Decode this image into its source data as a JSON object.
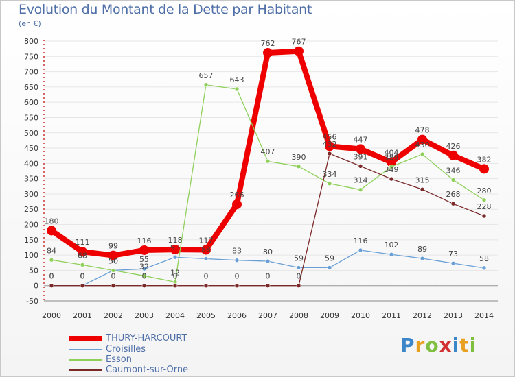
{
  "title": "Evolution du Montant de la Dette par Habitant",
  "unit": "(en €)",
  "logo": {
    "letters": [
      "P",
      "r",
      "o",
      "x",
      "i",
      "t",
      "i"
    ],
    "colors": [
      "#3a86c8",
      "#e8a020",
      "#7fbf3f",
      "#d03030",
      "#3a86c8",
      "#e8a020",
      "#7fbf3f"
    ]
  },
  "chart_data": {
    "type": "line",
    "title": "Evolution du Montant de la Dette par Habitant",
    "ylabel": "(en €)",
    "x": [
      "2000",
      "2001",
      "2002",
      "2003",
      "2004",
      "2005",
      "2006",
      "2007",
      "2008",
      "2009",
      "2010",
      "2011",
      "2012",
      "2013",
      "2014"
    ],
    "yticks": [
      -50,
      0,
      50,
      100,
      150,
      200,
      250,
      300,
      350,
      400,
      450,
      500,
      550,
      600,
      650,
      700,
      750,
      800
    ],
    "ylim": [
      -50,
      800
    ],
    "series": [
      {
        "name": "THURY-HARCOURT",
        "color": "#ee0000",
        "width": 8,
        "marker": 7,
        "values": [
          180,
          111,
          99,
          116,
          118,
          117,
          266,
          762,
          767,
          456,
          447,
          404,
          478,
          426,
          382
        ],
        "labels": [
          "180",
          "111",
          "99",
          "116",
          "118",
          "117",
          "266",
          "762",
          "767",
          "456",
          "447",
          "404",
          "478",
          "426",
          "382"
        ]
      },
      {
        "name": "Croisilles",
        "color": "#6a9fd6",
        "width": 1.3,
        "marker": 3,
        "values": [
          0,
          0,
          50,
          55,
          93,
          88,
          83,
          80,
          59,
          59,
          116,
          102,
          89,
          73,
          58
        ],
        "labels": [
          "0",
          "0",
          "50",
          "55",
          "93",
          "88",
          "83",
          "80",
          "59",
          "59",
          "116",
          "102",
          "89",
          "73",
          "58"
        ]
      },
      {
        "name": "Esson",
        "color": "#8ed05a",
        "width": 1.3,
        "marker": 3,
        "values": [
          84,
          68,
          50,
          32,
          12,
          657,
          643,
          407,
          390,
          334,
          314,
          389,
          430,
          346,
          280
        ],
        "labels": [
          "84",
          "68",
          "50",
          "32",
          "12",
          "657",
          "643",
          "407",
          "390",
          "334",
          "314",
          "389",
          "430",
          "346",
          "280"
        ]
      },
      {
        "name": "Caumont-sur-Orne",
        "color": "#7a2828",
        "width": 1.3,
        "marker": 3,
        "values": [
          0,
          0,
          0,
          0,
          0,
          0,
          0,
          0,
          0,
          432,
          391,
          349,
          315,
          268,
          228
        ],
        "labels": [
          "0",
          "0",
          "0",
          "0",
          "0",
          "0",
          "0",
          "0",
          "0",
          "432",
          "391",
          "349",
          "315",
          "268",
          "228"
        ]
      }
    ]
  }
}
